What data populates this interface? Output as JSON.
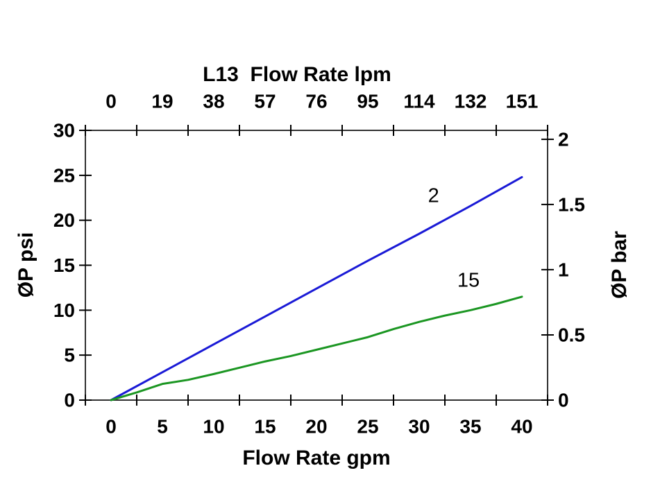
{
  "chart_data": {
    "type": "line",
    "title": "L13  Flow Rate lpm",
    "grid": false,
    "legend": "inline-labels-on-lines",
    "top_axis": {
      "title": "L13  Flow Rate lpm",
      "unit": "lpm",
      "tick_labels": [
        "0",
        "19",
        "38",
        "57",
        "76",
        "95",
        "114",
        "132",
        "151"
      ]
    },
    "bottom_axis": {
      "title": "Flow Rate gpm",
      "unit": "gpm",
      "tick_labels": [
        "0",
        "5",
        "10",
        "15",
        "20",
        "25",
        "30",
        "35",
        "40"
      ],
      "tick_values": [
        0,
        5,
        10,
        15,
        20,
        25,
        30,
        35,
        40
      ],
      "range": [
        0,
        40
      ]
    },
    "left_axis": {
      "title": "ØP psi",
      "unit": "psi",
      "tick_labels": [
        "0",
        "5",
        "10",
        "15",
        "20",
        "25",
        "30"
      ],
      "tick_values": [
        0,
        5,
        10,
        15,
        20,
        25,
        30
      ],
      "range": [
        0,
        30
      ]
    },
    "right_axis": {
      "title": "ØP bar",
      "unit": "bar",
      "tick_labels": [
        "0",
        "0.5",
        "1",
        "1.5",
        "2"
      ],
      "tick_values_bar": [
        0,
        0.5,
        1,
        1.5,
        2
      ],
      "psi_per_bar": 14.5038,
      "range": [
        0,
        2.07
      ]
    },
    "series": [
      {
        "name": "2",
        "color": "#1a1ad6",
        "label": "2",
        "label_pos": {
          "gpm": 31.4,
          "psi": 22.7
        },
        "points_gpm_psi": [
          [
            0,
            0
          ],
          [
            5,
            3.1
          ],
          [
            10,
            6.2
          ],
          [
            15,
            9.3
          ],
          [
            20,
            12.4
          ],
          [
            25,
            15.5
          ],
          [
            30,
            18.5
          ],
          [
            35,
            21.6
          ],
          [
            40,
            24.8
          ]
        ]
      },
      {
        "name": "15",
        "color": "#1b9622",
        "label": "15",
        "label_pos": {
          "gpm": 34.8,
          "psi": 13.3
        },
        "points_gpm_psi": [
          [
            0,
            0
          ],
          [
            2.5,
            0.85
          ],
          [
            5,
            1.8
          ],
          [
            7.5,
            2.25
          ],
          [
            10,
            2.9
          ],
          [
            12.5,
            3.6
          ],
          [
            15,
            4.3
          ],
          [
            17.5,
            4.9
          ],
          [
            20,
            5.6
          ],
          [
            22.5,
            6.3
          ],
          [
            25,
            7.0
          ],
          [
            27.5,
            7.9
          ],
          [
            30,
            8.7
          ],
          [
            32.5,
            9.4
          ],
          [
            35,
            10.0
          ],
          [
            37.5,
            10.7
          ],
          [
            40,
            11.5
          ]
        ]
      }
    ],
    "colors": {
      "axis_line": "#303030",
      "tick": "#000000",
      "text": "#000000",
      "background": "#ffffff"
    }
  }
}
